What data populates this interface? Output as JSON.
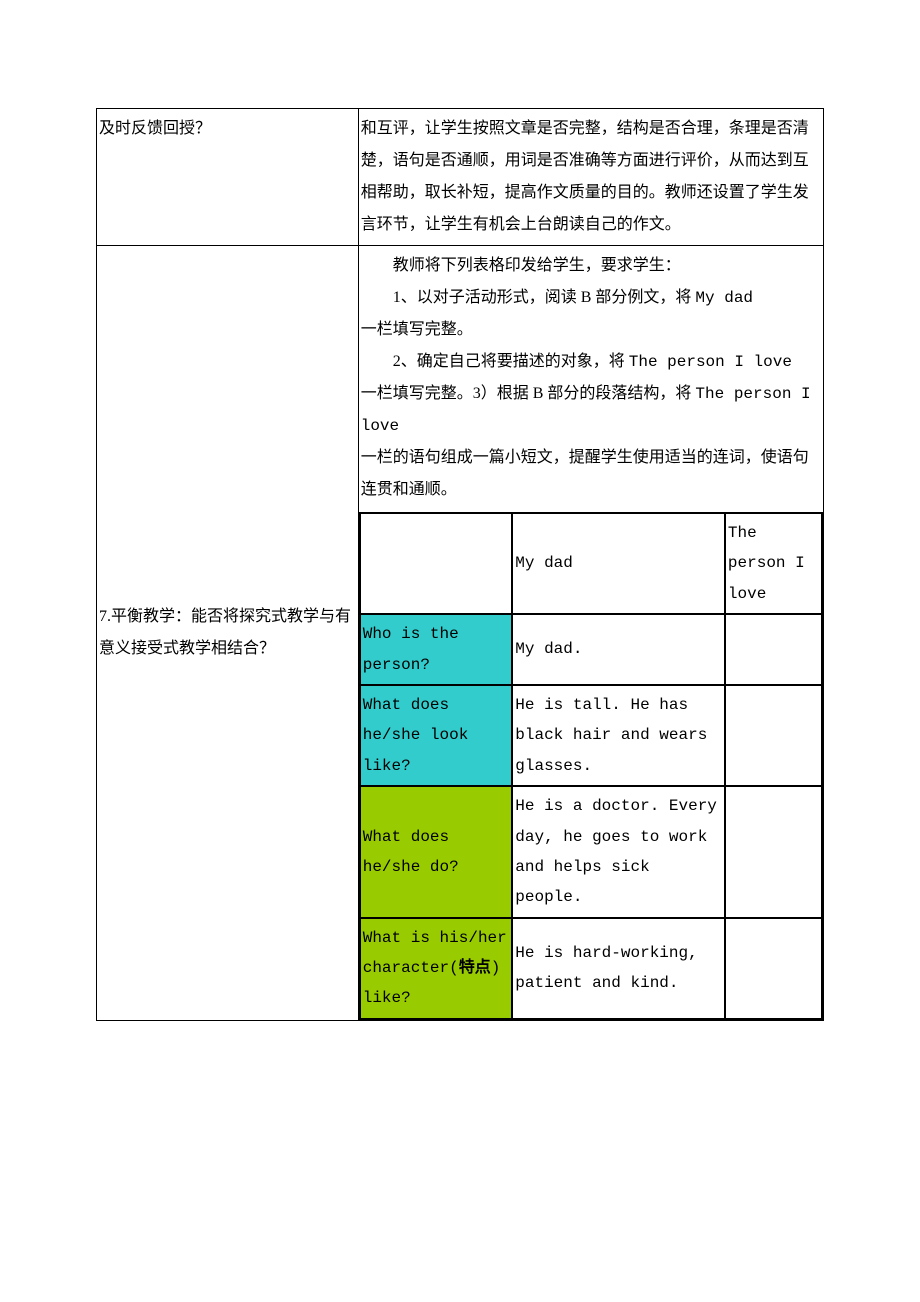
{
  "colors": {
    "teal": "#33cccc",
    "lime": "#99cc00",
    "border": "#000000",
    "background": "#ffffff",
    "text": "#000000"
  },
  "row6": {
    "left": "及时反馈回授？",
    "right": "和互评，让学生按照文章是否完整，结构是否合理，条理是否清楚，语句是否通顺，用词是否准确等方面进行评价，从而达到互相帮助，取长补短，提高作文质量的目的。教师还设置了学生发言环节，让学生有机会上台朗读自己的作文。"
  },
  "row7": {
    "left": "7.平衡教学：能否将探究式教学与有意义接受式教学相结合？",
    "intro": {
      "p1": "教师将下列表格印发给学生，要求学生：",
      "p2_a": "1、以对子活动形式，阅读 B 部分例文，将 ",
      "p2_b": "My dad",
      "p2_c": "一栏填写完整。",
      "p3_a": "2、确定自己将要描述的对象，将 ",
      "p3_b": "The person I love",
      "p3_c": "一栏填写完整。3）根据 B 部分的段落结构，将 ",
      "p3_d": "The person I love ",
      "p3_e": "一栏的语句组成一篇小短文，提醒学生使用适当的连词，使语句连贯和通顺。"
    },
    "inner_table": {
      "headers": {
        "col1": "",
        "col2": "My dad",
        "col3": "The person I love"
      },
      "rows": [
        {
          "q": "Who is the person?",
          "a1": "My dad.",
          "a2": "",
          "bg": "teal"
        },
        {
          "q": "What does he/she look like?",
          "a1": "He is tall. He has black hair and wears glasses.",
          "a2": "",
          "bg": "teal"
        },
        {
          "q": "What does he/she do?",
          "a1": "He is a doctor. Every day, he goes to work and helps sick people.",
          "a2": "",
          "bg": "lime"
        },
        {
          "q_parts": {
            "pre": "What is his/her character(",
            "bold": "特点",
            "post": ") like?"
          },
          "a1": "He is hard-working, patient and kind.",
          "a2": "",
          "bg": "lime"
        }
      ]
    }
  }
}
